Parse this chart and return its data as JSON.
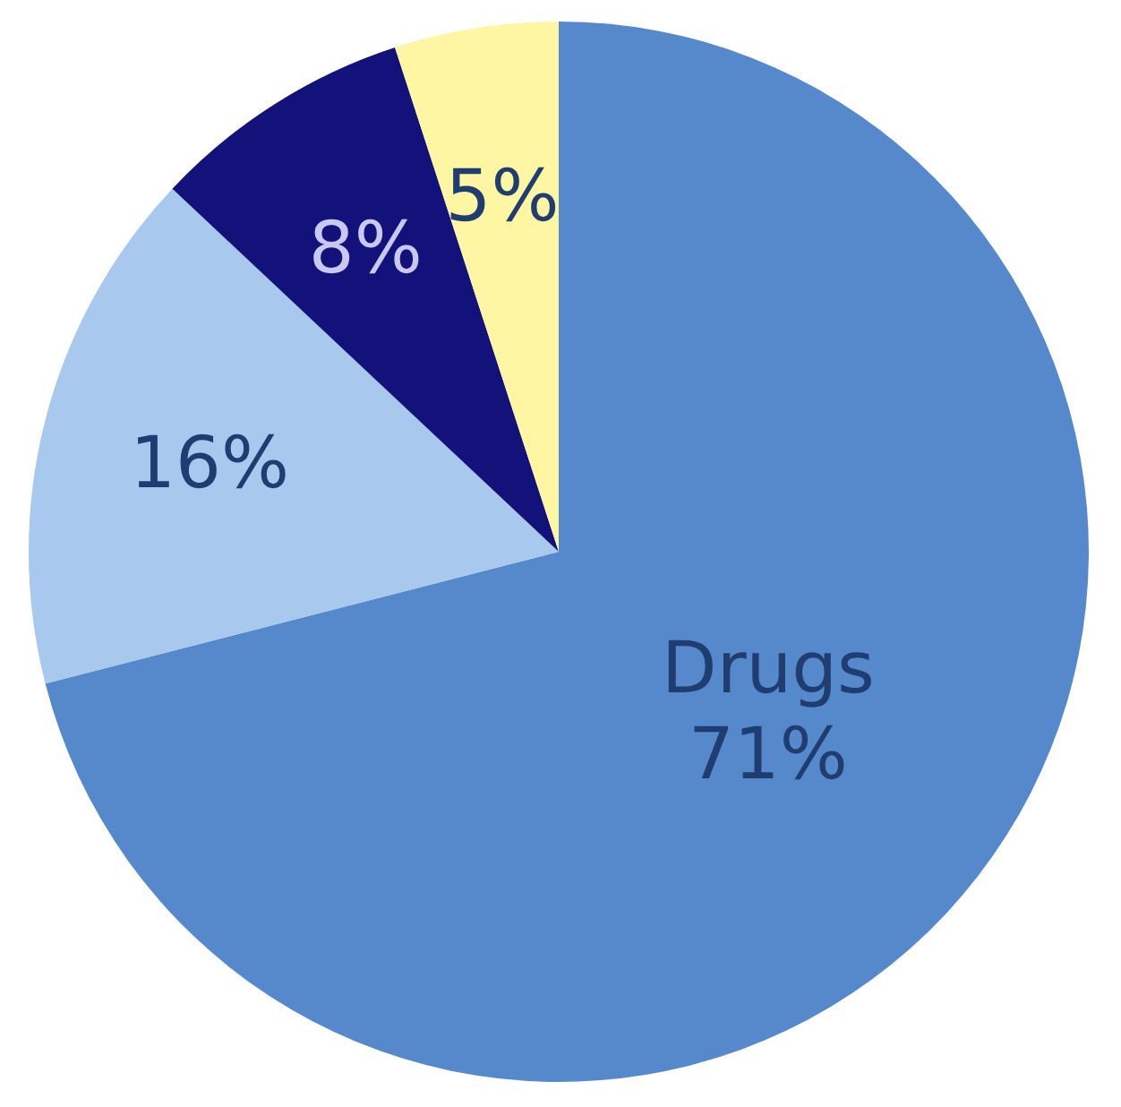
{
  "chart_data": {
    "type": "pie",
    "categories": [
      "Drugs",
      null,
      null,
      null
    ],
    "values": [
      71,
      16,
      8,
      5
    ],
    "value_labels": [
      "71%",
      "16%",
      "8%",
      "5%"
    ],
    "colors": [
      "#5589cc",
      "#a8c8ee",
      "#12127a",
      "#fff6a3"
    ]
  }
}
